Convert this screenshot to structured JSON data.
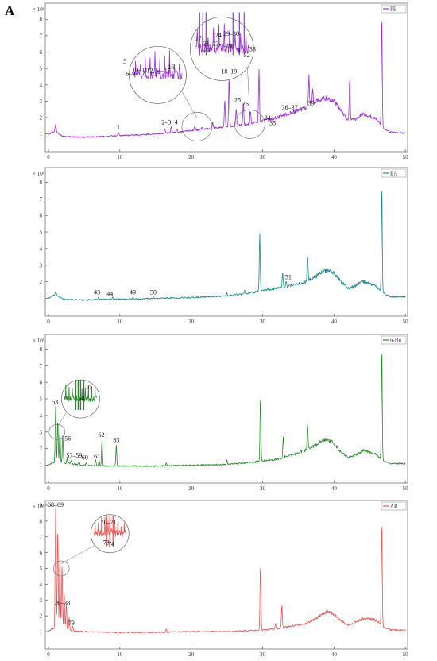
{
  "panel_letter": "A",
  "chart_data": [
    {
      "type": "line",
      "legend": "PE",
      "color": "#9b30e0",
      "y_multiplier": "× 10⁶",
      "xlim": [
        0,
        50
      ],
      "ylim": [
        0.5,
        8.5
      ],
      "xticks": [
        0,
        10,
        20,
        30,
        40,
        50
      ],
      "yticks": [
        1,
        2,
        3,
        4,
        5,
        6,
        7,
        8
      ],
      "baseline": [
        [
          0,
          1.0
        ],
        [
          1,
          1.2
        ],
        [
          2,
          0.85
        ],
        [
          5,
          0.8
        ],
        [
          8,
          0.85
        ],
        [
          10,
          0.9
        ],
        [
          13,
          0.95
        ],
        [
          15,
          1.0
        ],
        [
          18,
          1.1
        ],
        [
          20,
          1.2
        ],
        [
          22,
          1.3
        ],
        [
          24,
          1.4
        ],
        [
          26,
          1.5
        ],
        [
          28,
          1.6
        ],
        [
          30,
          1.8
        ],
        [
          32,
          2.0
        ],
        [
          34,
          2.3
        ],
        [
          36,
          2.6
        ],
        [
          37,
          2.9
        ],
        [
          38,
          3.1
        ],
        [
          39,
          3.2
        ],
        [
          40,
          3.0
        ],
        [
          41,
          2.4
        ],
        [
          42,
          1.8
        ],
        [
          43,
          1.9
        ],
        [
          44,
          2.2
        ],
        [
          45,
          2.1
        ],
        [
          46,
          1.9
        ],
        [
          47,
          1.3
        ],
        [
          48,
          1.1
        ],
        [
          50,
          1.05
        ]
      ],
      "peaks": [
        [
          1.0,
          1.6
        ],
        [
          9.8,
          1.1
        ],
        [
          16.3,
          1.3
        ],
        [
          17.2,
          1.45
        ],
        [
          18.0,
          1.3
        ],
        [
          20.5,
          1.55
        ],
        [
          21.5,
          1.4
        ],
        [
          23.0,
          1.7
        ],
        [
          24.7,
          3.1
        ],
        [
          25.3,
          4.5
        ],
        [
          26.3,
          2.6
        ],
        [
          27.3,
          2.9
        ],
        [
          28.3,
          2.4
        ],
        [
          29.5,
          5.0
        ],
        [
          30.3,
          2.0
        ],
        [
          31.0,
          1.7
        ],
        [
          33.0,
          2.2
        ],
        [
          34.0,
          2.3
        ],
        [
          36.5,
          4.6
        ],
        [
          37.0,
          3.8
        ],
        [
          42.2,
          4.5
        ],
        [
          46.7,
          8.3
        ]
      ],
      "labels": [
        {
          "text": "1",
          "x": 9.8,
          "y": 1.3
        },
        {
          "text": "2–3",
          "x": 16.5,
          "y": 1.6
        },
        {
          "text": "4",
          "x": 17.9,
          "y": 1.6
        },
        {
          "text": "18–19",
          "x": 25.3,
          "y": 4.7
        },
        {
          "text": "25",
          "x": 26.5,
          "y": 2.95
        },
        {
          "text": "26",
          "x": 27.6,
          "y": 2.7
        },
        {
          "text": "34",
          "x": 30.7,
          "y": 1.85
        },
        {
          "text": "35",
          "x": 31.4,
          "y": 1.55
        },
        {
          "text": "36–37",
          "x": 33.8,
          "y": 2.5
        },
        {
          "text": "39",
          "x": 36.8,
          "y": 2.75
        }
      ],
      "zooms": [
        {
          "circle_x": 15.3,
          "circle_y": 4.6,
          "target_x": 20.8,
          "target_y": 1.45,
          "labels": [
            {
              "text": "5",
              "x": 10.7,
              "y": 5.3
            },
            {
              "text": "6–9",
              "x": 11.5,
              "y": 4.55
            },
            {
              "text": "10–11",
              "x": 12.8,
              "y": 4.8
            },
            {
              "text": "12",
              "x": 14.2,
              "y": 4.75
            },
            {
              "text": "13",
              "x": 14.8,
              "y": 4.55
            },
            {
              "text": "14–15",
              "x": 16.0,
              "y": 4.75
            },
            {
              "text": "16",
              "x": 17.2,
              "y": 4.95
            }
          ]
        },
        {
          "circle_x": 24.3,
          "circle_y": 6.2,
          "target_x": 28.2,
          "target_y": 1.6,
          "labels": [
            {
              "text": "17",
              "x": 21.0,
              "y": 6.7
            },
            {
              "text": "24",
              "x": 23.8,
              "y": 6.9
            },
            {
              "text": "29–30",
              "x": 25.6,
              "y": 7.0
            },
            {
              "text": "21–23",
              "x": 22.8,
              "y": 6.4
            },
            {
              "text": "20",
              "x": 22.2,
              "y": 6.0
            },
            {
              "text": "27–28",
              "x": 24.8,
              "y": 6.25
            },
            {
              "text": "31",
              "x": 26.9,
              "y": 5.95
            },
            {
              "text": "32",
              "x": 27.8,
              "y": 5.7
            },
            {
              "text": "33",
              "x": 28.6,
              "y": 6.05
            }
          ]
        }
      ]
    },
    {
      "type": "line",
      "legend": "EA",
      "color": "#1d8a8a",
      "y_multiplier": "× 10⁶",
      "xlim": [
        0,
        50
      ],
      "ylim": [
        0.5,
        8.5
      ],
      "xticks": [
        0,
        10,
        20,
        30,
        40,
        50
      ],
      "yticks": [
        1,
        2,
        3,
        4,
        5,
        6,
        7,
        8
      ],
      "baseline": [
        [
          0,
          1.0
        ],
        [
          1,
          1.25
        ],
        [
          2,
          0.95
        ],
        [
          5,
          0.9
        ],
        [
          8,
          0.95
        ],
        [
          10,
          0.95
        ],
        [
          15,
          1.0
        ],
        [
          20,
          1.05
        ],
        [
          25,
          1.15
        ],
        [
          28,
          1.3
        ],
        [
          30,
          1.5
        ],
        [
          32,
          1.6
        ],
        [
          34,
          1.75
        ],
        [
          36,
          2.0
        ],
        [
          37,
          2.2
        ],
        [
          38,
          2.5
        ],
        [
          39,
          2.7
        ],
        [
          40,
          2.5
        ],
        [
          41,
          2.0
        ],
        [
          42,
          1.6
        ],
        [
          43,
          1.75
        ],
        [
          44,
          2.05
        ],
        [
          45,
          1.9
        ],
        [
          46,
          1.7
        ],
        [
          47,
          1.3
        ],
        [
          48,
          1.1
        ],
        [
          50,
          1.1
        ]
      ],
      "peaks": [
        [
          1.0,
          1.4
        ],
        [
          7.0,
          1.1
        ],
        [
          9.0,
          1.05
        ],
        [
          11.8,
          1.05
        ],
        [
          14.7,
          1.1
        ],
        [
          25.0,
          1.35
        ],
        [
          27.5,
          1.45
        ],
        [
          29.6,
          5.0
        ],
        [
          32.8,
          2.6
        ],
        [
          33.3,
          2.0
        ],
        [
          35.5,
          1.6
        ],
        [
          36.3,
          3.6
        ],
        [
          46.7,
          7.9
        ]
      ],
      "labels": [
        {
          "text": "43",
          "x": 6.8,
          "y": 1.25
        },
        {
          "text": "44",
          "x": 8.6,
          "y": 1.15
        },
        {
          "text": "49",
          "x": 11.8,
          "y": 1.25
        },
        {
          "text": "50",
          "x": 14.7,
          "y": 1.25
        },
        {
          "text": "51",
          "x": 33.6,
          "y": 2.15
        }
      ],
      "zooms": []
    },
    {
      "type": "line",
      "legend": "n-Bu",
      "color": "#2a8a2a",
      "y_multiplier": "× 10⁶",
      "xlim": [
        0,
        50
      ],
      "ylim": [
        0.5,
        8.5
      ],
      "xticks": [
        0,
        10,
        20,
        30,
        40,
        50
      ],
      "yticks": [
        1,
        2,
        3,
        4,
        5,
        6,
        7,
        8
      ],
      "baseline": [
        [
          0,
          1.0
        ],
        [
          0.6,
          1.15
        ],
        [
          3,
          1.1
        ],
        [
          5,
          1.0
        ],
        [
          8,
          0.95
        ],
        [
          10,
          0.95
        ],
        [
          15,
          0.95
        ],
        [
          20,
          1.0
        ],
        [
          25,
          1.05
        ],
        [
          28,
          1.15
        ],
        [
          30,
          1.25
        ],
        [
          32,
          1.35
        ],
        [
          34,
          1.6
        ],
        [
          36,
          1.9
        ],
        [
          37,
          2.1
        ],
        [
          38,
          2.4
        ],
        [
          39,
          2.6
        ],
        [
          40,
          2.3
        ],
        [
          41,
          1.8
        ],
        [
          42,
          1.45
        ],
        [
          43,
          1.6
        ],
        [
          44,
          1.9
        ],
        [
          45,
          1.8
        ],
        [
          46,
          1.6
        ],
        [
          47,
          1.25
        ],
        [
          48,
          1.1
        ],
        [
          50,
          1.1
        ]
      ],
      "peaks": [
        [
          1.0,
          4.5
        ],
        [
          1.3,
          3.7
        ],
        [
          1.6,
          3.2
        ],
        [
          2.0,
          2.8
        ],
        [
          2.6,
          1.4
        ],
        [
          3.2,
          1.3
        ],
        [
          4.3,
          1.25
        ],
        [
          5.3,
          1.15
        ],
        [
          6.6,
          1.35
        ],
        [
          7.1,
          1.25
        ],
        [
          7.5,
          2.5
        ],
        [
          9.5,
          2.2
        ],
        [
          16.5,
          1.15
        ],
        [
          25.0,
          1.3
        ],
        [
          29.7,
          5.2
        ],
        [
          32.9,
          2.7
        ],
        [
          35.7,
          1.7
        ],
        [
          36.3,
          3.5
        ],
        [
          46.7,
          8.1
        ]
      ],
      "labels": [
        {
          "text": "53",
          "x": 0.9,
          "y": 4.7
        },
        {
          "text": "56",
          "x": 2.7,
          "y": 2.5
        },
        {
          "text": "57–59",
          "x": 3.6,
          "y": 1.45
        },
        {
          "text": "60",
          "x": 5.1,
          "y": 1.35
        },
        {
          "text": "61",
          "x": 6.8,
          "y": 1.4
        },
        {
          "text": "62",
          "x": 7.4,
          "y": 2.7
        },
        {
          "text": "63",
          "x": 9.5,
          "y": 2.4
        }
      ],
      "zooms": [
        {
          "circle_x": 4.5,
          "circle_y": 5.0,
          "target_x": 1.2,
          "target_y": 3.0,
          "labels": [
            {
              "text": "54",
              "x": 4.6,
              "y": 4.9
            },
            {
              "text": "55",
              "x": 5.7,
              "y": 5.6
            }
          ]
        }
      ]
    },
    {
      "type": "line",
      "legend": "AR",
      "color": "#ee5555",
      "y_multiplier": "× 10⁶",
      "xlim": [
        0,
        50
      ],
      "ylim": [
        0.5,
        9.2
      ],
      "xticks": [
        0,
        10,
        20,
        30,
        40,
        50
      ],
      "yticks": [
        1,
        2,
        3,
        4,
        5,
        6,
        7,
        8,
        9
      ],
      "baseline": [
        [
          0,
          1.0
        ],
        [
          0.5,
          1.2
        ],
        [
          3,
          1.05
        ],
        [
          5,
          1.0
        ],
        [
          10,
          0.95
        ],
        [
          15,
          0.95
        ],
        [
          20,
          1.0
        ],
        [
          25,
          1.0
        ],
        [
          28,
          1.05
        ],
        [
          30,
          1.1
        ],
        [
          32,
          1.2
        ],
        [
          34,
          1.35
        ],
        [
          36,
          1.5
        ],
        [
          37,
          1.7
        ],
        [
          38,
          2.0
        ],
        [
          39,
          2.3
        ],
        [
          40,
          2.1
        ],
        [
          41,
          1.7
        ],
        [
          42,
          1.4
        ],
        [
          43,
          1.6
        ],
        [
          44,
          1.8
        ],
        [
          45,
          1.8
        ],
        [
          46,
          1.7
        ],
        [
          47,
          1.3
        ],
        [
          48,
          1.1
        ],
        [
          50,
          1.1
        ]
      ],
      "peaks": [
        [
          1.0,
          8.8
        ],
        [
          1.3,
          7.5
        ],
        [
          1.6,
          6.0
        ],
        [
          1.9,
          5.2
        ],
        [
          2.2,
          3.5
        ],
        [
          2.5,
          2.8
        ],
        [
          2.9,
          1.9
        ],
        [
          3.4,
          1.4
        ],
        [
          16.5,
          1.15
        ],
        [
          29.7,
          5.3
        ],
        [
          31.8,
          1.5
        ],
        [
          32.7,
          2.7
        ],
        [
          46.7,
          8.0
        ]
      ],
      "labels": [
        {
          "text": "68–69",
          "x": 1.0,
          "y": 8.9
        },
        {
          "text": "76–78",
          "x": 1.9,
          "y": 2.7
        },
        {
          "text": "79",
          "x": 3.2,
          "y": 1.4
        }
      ],
      "zooms": [
        {
          "circle_x": 8.6,
          "circle_y": 7.2,
          "target_x": 1.8,
          "target_y": 5.0,
          "labels": [
            {
              "text": "70–71",
              "x": 8.4,
              "y": 7.8
            },
            {
              "text": "73",
              "x": 8.1,
              "y": 6.5
            },
            {
              "text": "74",
              "x": 8.8,
              "y": 6.4
            }
          ]
        }
      ]
    }
  ]
}
